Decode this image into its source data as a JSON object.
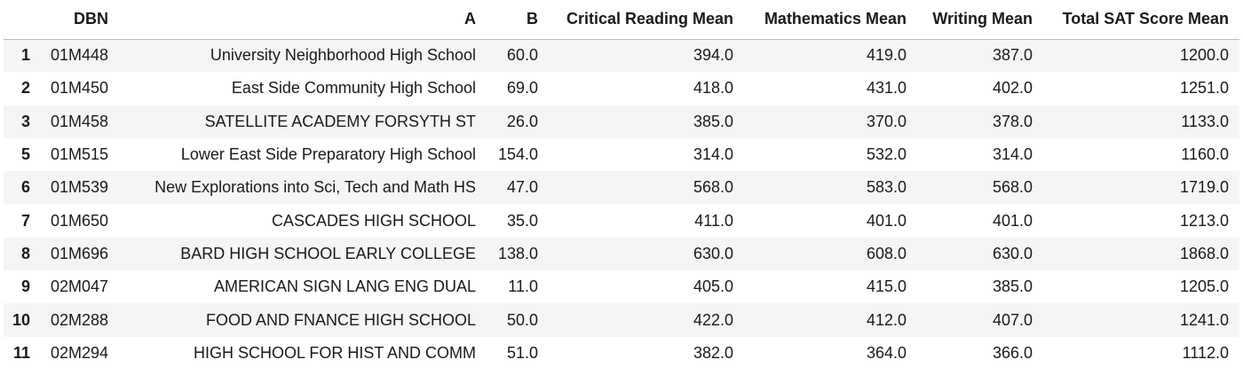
{
  "table": {
    "index_header": "",
    "columns": [
      "DBN",
      "A",
      "B",
      "Critical Reading Mean",
      "Mathematics Mean",
      "Writing Mean",
      "Total SAT Score Mean"
    ],
    "rows": [
      {
        "index": "1",
        "cells": [
          "01M448",
          "University Neighborhood High School",
          "60.0",
          "394.0",
          "419.0",
          "387.0",
          "1200.0"
        ]
      },
      {
        "index": "2",
        "cells": [
          "01M450",
          "East Side Community High School",
          "69.0",
          "418.0",
          "431.0",
          "402.0",
          "1251.0"
        ]
      },
      {
        "index": "3",
        "cells": [
          "01M458",
          "SATELLITE ACADEMY FORSYTH ST",
          "26.0",
          "385.0",
          "370.0",
          "378.0",
          "1133.0"
        ]
      },
      {
        "index": "5",
        "cells": [
          "01M515",
          "Lower East Side Preparatory High School",
          "154.0",
          "314.0",
          "532.0",
          "314.0",
          "1160.0"
        ]
      },
      {
        "index": "6",
        "cells": [
          "01M539",
          "New Explorations into Sci, Tech and Math HS",
          "47.0",
          "568.0",
          "583.0",
          "568.0",
          "1719.0"
        ]
      },
      {
        "index": "7",
        "cells": [
          "01M650",
          "CASCADES HIGH SCHOOL",
          "35.0",
          "411.0",
          "401.0",
          "401.0",
          "1213.0"
        ]
      },
      {
        "index": "8",
        "cells": [
          "01M696",
          "BARD HIGH SCHOOL EARLY COLLEGE",
          "138.0",
          "630.0",
          "608.0",
          "630.0",
          "1868.0"
        ]
      },
      {
        "index": "9",
        "cells": [
          "02M047",
          "AMERICAN SIGN LANG ENG DUAL",
          "11.0",
          "405.0",
          "415.0",
          "385.0",
          "1205.0"
        ]
      },
      {
        "index": "10",
        "cells": [
          "02M288",
          "FOOD AND FNANCE HIGH SCHOOL",
          "50.0",
          "422.0",
          "412.0",
          "407.0",
          "1241.0"
        ]
      },
      {
        "index": "11",
        "cells": [
          "02M294",
          "HIGH SCHOOL FOR HIST AND COMM",
          "51.0",
          "382.0",
          "364.0",
          "366.0",
          "1112.0"
        ]
      }
    ]
  }
}
